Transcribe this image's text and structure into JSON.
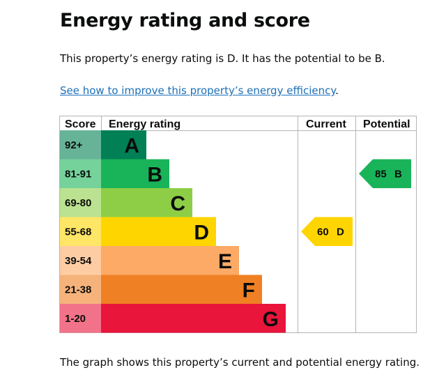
{
  "heading": "Energy rating and score",
  "intro": "This property’s energy rating is D. It has the potential to be B.",
  "link": {
    "text": "See how to improve this property’s energy efficiency",
    "suffix": "."
  },
  "table": {
    "headers": {
      "score": "Score",
      "rating": "Energy rating",
      "current": "Current",
      "potential": "Potential"
    },
    "bands": [
      {
        "score": "92+",
        "letter": "A",
        "color": "#008054",
        "score_bg": "#66b398"
      },
      {
        "score": "81-91",
        "letter": "B",
        "color": "#19b459",
        "score_bg": "#75d29b"
      },
      {
        "score": "69-80",
        "letter": "C",
        "color": "#8dce46",
        "score_bg": "#bbe290"
      },
      {
        "score": "55-68",
        "letter": "D",
        "color": "#ffd500",
        "score_bg": "#ffe666"
      },
      {
        "score": "39-54",
        "letter": "E",
        "color": "#fcaa65",
        "score_bg": "#fdcca3"
      },
      {
        "score": "21-38",
        "letter": "F",
        "color": "#ef8023",
        "score_bg": "#f5b37b"
      },
      {
        "score": "1-20",
        "letter": "G",
        "color": "#e9153b",
        "score_bg": "#f27389"
      }
    ],
    "current": {
      "score": "60",
      "letter": "D",
      "band_index": 3,
      "color": "#ffd500"
    },
    "potential": {
      "score": "85",
      "letter": "B",
      "band_index": 1,
      "color": "#19b459"
    }
  },
  "footer": "The graph shows this property’s current and potential energy rating."
}
